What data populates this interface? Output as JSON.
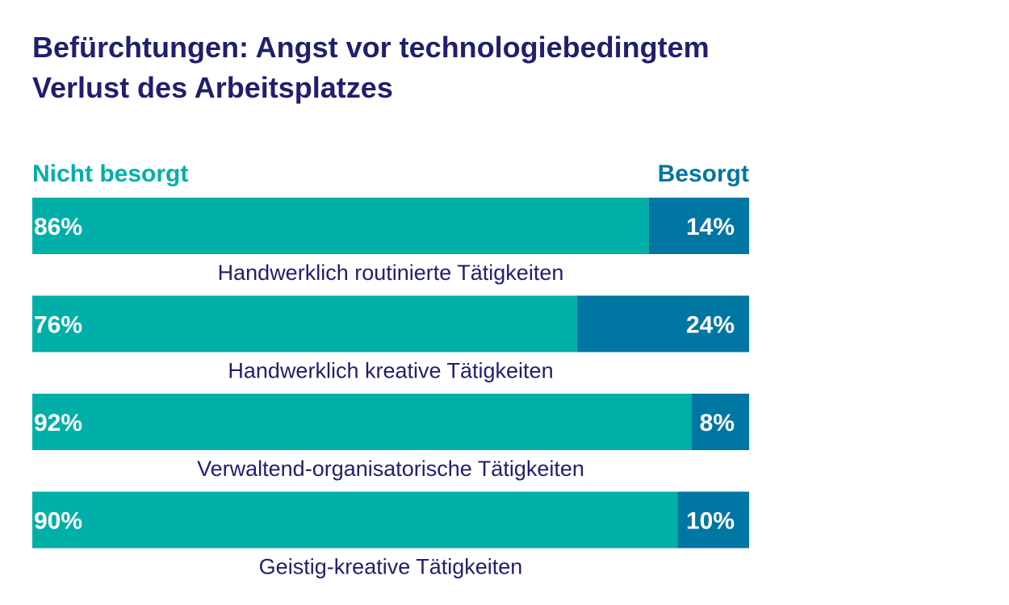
{
  "title_lines": [
    "Befürchtungen: Angst vor technologiebedingtem",
    "Verlust des Arbeitsplatzes"
  ],
  "colors": {
    "title": "#1f1f6e",
    "not_worried": "#00afa8",
    "worried": "#0076a3",
    "label": "#1f1f6e"
  },
  "chart_data": {
    "type": "bar",
    "orientation": "horizontal",
    "stacked": true,
    "percent_stacked": true,
    "title": "Befürchtungen: Angst vor technologiebedingtem Verlust des Arbeitsplatzes",
    "categories": [
      "Handwerklich routinierte Tätigkeiten",
      "Handwerklich kreative Tätigkeiten",
      "Verwaltend-organisatorische Tätigkeiten",
      "Geistig-kreative Tätigkeiten"
    ],
    "series": [
      {
        "name": "Nicht besorgt",
        "values": [
          86,
          76,
          92,
          90
        ],
        "labels": [
          "86%",
          "76%",
          "92%",
          "90%"
        ]
      },
      {
        "name": "Besorgt",
        "values": [
          14,
          24,
          8,
          10
        ],
        "labels": [
          "14%",
          "24%",
          "8%",
          "10%"
        ]
      }
    ],
    "xlim": [
      0,
      100
    ],
    "legend_position": "top"
  }
}
